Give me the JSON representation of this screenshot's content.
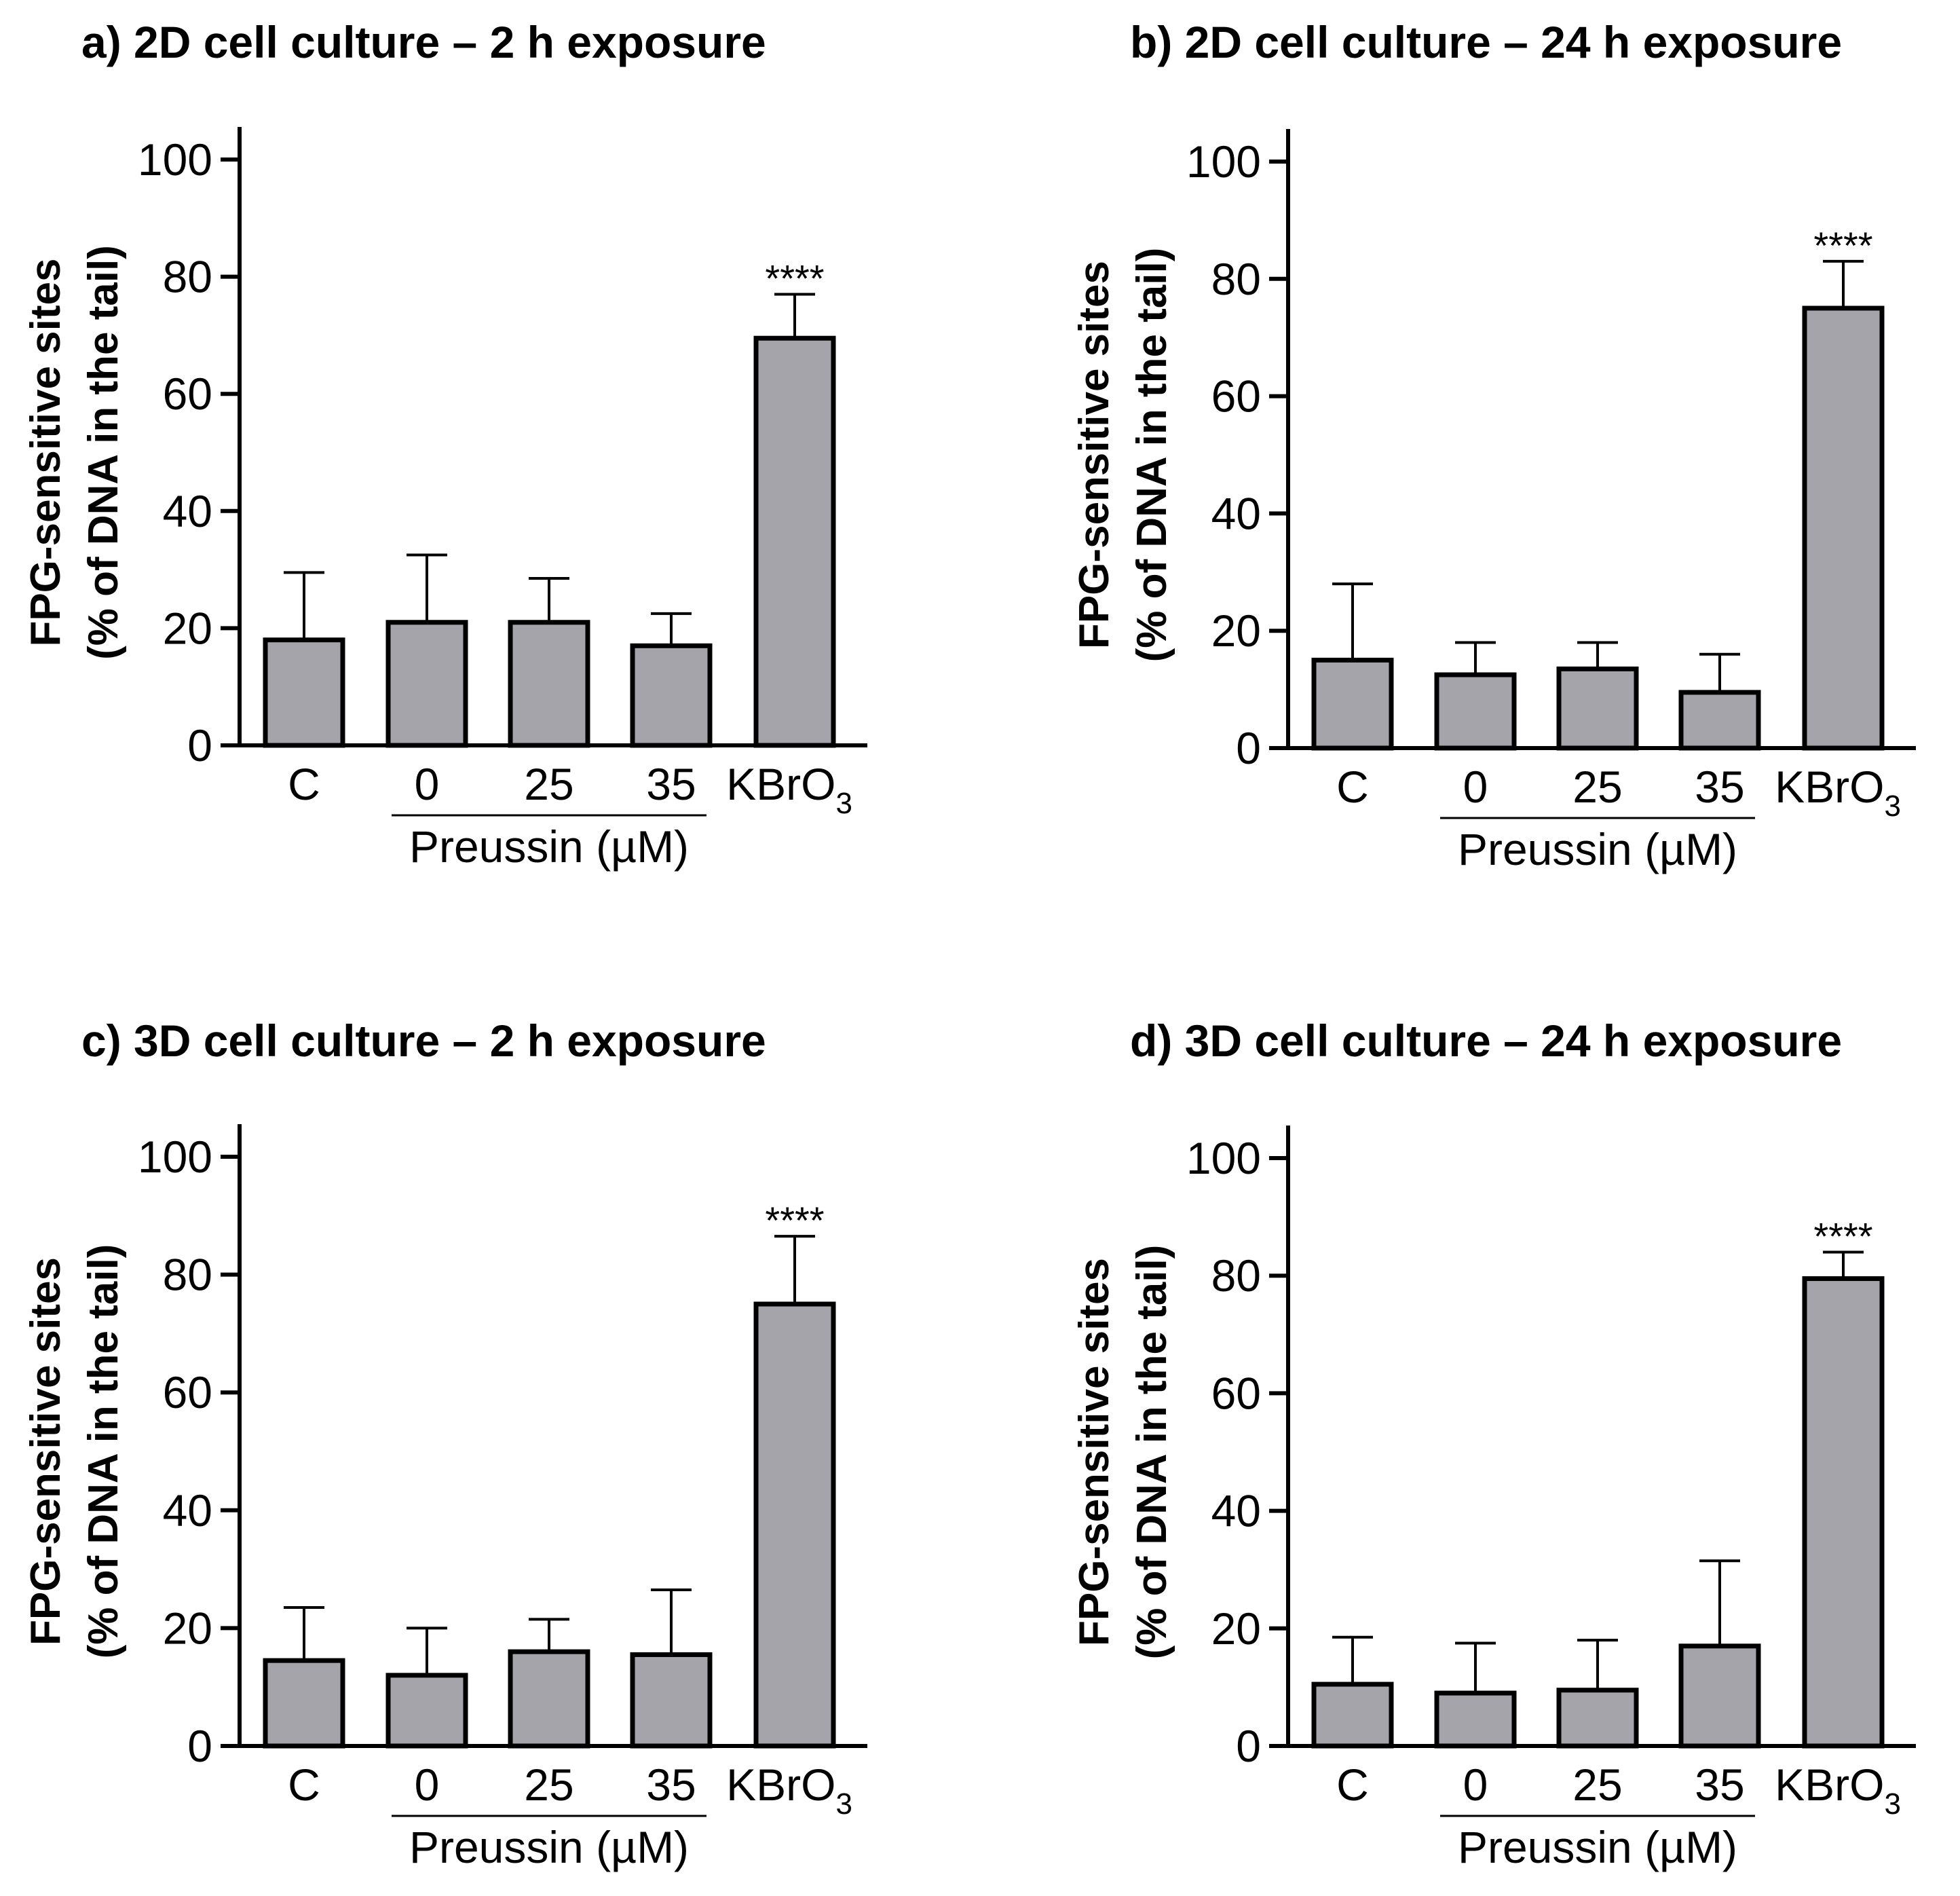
{
  "figure": {
    "group_label": "Preussin (µM)",
    "bar_fill": "#a5a4aa",
    "bar_stroke": "#000000"
  },
  "chart_data": [
    {
      "type": "bar",
      "title": "a) 2D cell culture – 2 h exposure",
      "ylabel_line1": "FPG-sensitive sites",
      "ylabel_line2": "(% of DNA in the tail)",
      "xlabel": "Preussin (µM)",
      "categories": [
        "C",
        "0",
        "25",
        "35",
        "KBrO3"
      ],
      "values": [
        18,
        21,
        21,
        17,
        69.5
      ],
      "errors": [
        11.5,
        11.5,
        7.5,
        5.5,
        7.5
      ],
      "significance": [
        "",
        "",
        "",
        "",
        "****"
      ],
      "ylim": [
        0,
        100
      ],
      "yticks": [
        0,
        20,
        40,
        60,
        80,
        100
      ]
    },
    {
      "type": "bar",
      "title": "b) 2D cell culture – 24 h exposure",
      "ylabel_line1": "FPG-sensitive sites",
      "ylabel_line2": "(% of DNA in the tail)",
      "xlabel": "Preussin (µM)",
      "categories": [
        "C",
        "0",
        "25",
        "35",
        "KBrO3"
      ],
      "values": [
        15,
        12.5,
        13.5,
        9.5,
        75
      ],
      "errors": [
        13,
        5.5,
        4.5,
        6.5,
        8
      ],
      "significance": [
        "",
        "",
        "",
        "",
        "****"
      ],
      "ylim": [
        0,
        100
      ],
      "yticks": [
        0,
        20,
        40,
        60,
        80,
        100
      ]
    },
    {
      "type": "bar",
      "title": "c) 3D cell culture – 2 h exposure",
      "ylabel_line1": "FPG-sensitive sites",
      "ylabel_line2": "(% of DNA in the tail)",
      "xlabel": "Preussin (µM)",
      "categories": [
        "C",
        "0",
        "25",
        "35",
        "KBrO3"
      ],
      "values": [
        14.5,
        12,
        16,
        15.5,
        75
      ],
      "errors": [
        9,
        8,
        5.5,
        11,
        11.5
      ],
      "significance": [
        "",
        "",
        "",
        "",
        "****"
      ],
      "ylim": [
        0,
        100
      ],
      "yticks": [
        0,
        20,
        40,
        60,
        80,
        100
      ]
    },
    {
      "type": "bar",
      "title": "d) 3D cell culture – 24 h exposure",
      "ylabel_line1": "FPG-sensitive sites",
      "ylabel_line2": "(% of DNA in the tail)",
      "xlabel": "Preussin (µM)",
      "categories": [
        "C",
        "0",
        "25",
        "35",
        "KBrO3"
      ],
      "values": [
        10.5,
        9,
        9.5,
        17,
        79.5
      ],
      "errors": [
        8,
        8.5,
        8.5,
        14.5,
        4.5
      ],
      "significance": [
        "",
        "",
        "",
        "",
        "****"
      ],
      "ylim": [
        0,
        100
      ],
      "yticks": [
        0,
        20,
        40,
        60,
        80,
        100
      ]
    }
  ]
}
